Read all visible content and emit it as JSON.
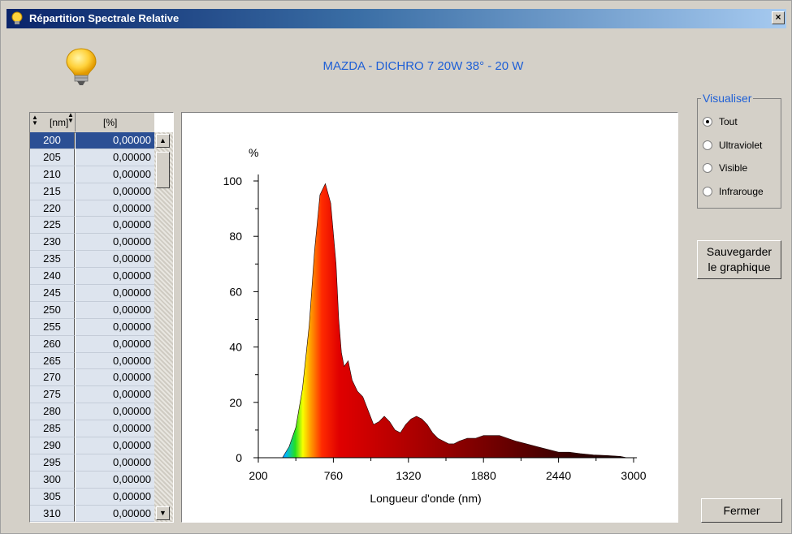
{
  "window": {
    "title": "Répartition Spectrale Relative",
    "close_label": "×"
  },
  "lamp_title": "MAZDA - DICHRO 7 20W 38° - 20 W",
  "table": {
    "columns": [
      "[nm]",
      "[%]"
    ],
    "rows": [
      [
        "200",
        "0,00000"
      ],
      [
        "205",
        "0,00000"
      ],
      [
        "210",
        "0,00000"
      ],
      [
        "215",
        "0,00000"
      ],
      [
        "220",
        "0,00000"
      ],
      [
        "225",
        "0,00000"
      ],
      [
        "230",
        "0,00000"
      ],
      [
        "235",
        "0,00000"
      ],
      [
        "240",
        "0,00000"
      ],
      [
        "245",
        "0,00000"
      ],
      [
        "250",
        "0,00000"
      ],
      [
        "255",
        "0,00000"
      ],
      [
        "260",
        "0,00000"
      ],
      [
        "265",
        "0,00000"
      ],
      [
        "270",
        "0,00000"
      ],
      [
        "275",
        "0,00000"
      ],
      [
        "280",
        "0,00000"
      ],
      [
        "285",
        "0,00000"
      ],
      [
        "290",
        "0,00000"
      ],
      [
        "295",
        "0,00000"
      ],
      [
        "300",
        "0,00000"
      ],
      [
        "305",
        "0,00000"
      ],
      [
        "310",
        "0,00000"
      ]
    ],
    "selected_index": 0
  },
  "visualiser": {
    "legend": "Visualiser",
    "options": [
      "Tout",
      "Ultraviolet",
      "Visible",
      "Infrarouge"
    ],
    "selected": "Tout"
  },
  "buttons": {
    "save_line1": "Sauvegarder",
    "save_line2": "le graphique",
    "close": "Fermer"
  },
  "chart_data": {
    "type": "area",
    "ylabel": "%",
    "xlabel": "Longueur d'onde (nm)",
    "xlim": [
      200,
      3000
    ],
    "ylim": [
      0,
      100
    ],
    "xticks": [
      200,
      760,
      1320,
      1880,
      2440,
      3000
    ],
    "yticks": [
      0,
      20,
      40,
      60,
      80,
      100
    ],
    "x": [
      380,
      430,
      480,
      530,
      580,
      620,
      660,
      700,
      740,
      780,
      800,
      820,
      840,
      870,
      900,
      940,
      980,
      1020,
      1060,
      1100,
      1140,
      1180,
      1220,
      1260,
      1300,
      1340,
      1380,
      1420,
      1460,
      1500,
      1540,
      1580,
      1620,
      1660,
      1700,
      1760,
      1820,
      1880,
      1940,
      2000,
      2060,
      2120,
      2200,
      2280,
      2360,
      2440,
      2520,
      2600,
      2700,
      2800,
      2900,
      2950
    ],
    "y": [
      0,
      4,
      11,
      25,
      48,
      75,
      95,
      99,
      92,
      70,
      50,
      38,
      33,
      35,
      28,
      24,
      22,
      17,
      12,
      13,
      15,
      13,
      10,
      9,
      12,
      14,
      15,
      14,
      12,
      9,
      7,
      6,
      5,
      5,
      6,
      7,
      7,
      8,
      8,
      8,
      7,
      6,
      5,
      4,
      3,
      2,
      2,
      1.5,
      1,
      0.8,
      0.5,
      0
    ]
  }
}
